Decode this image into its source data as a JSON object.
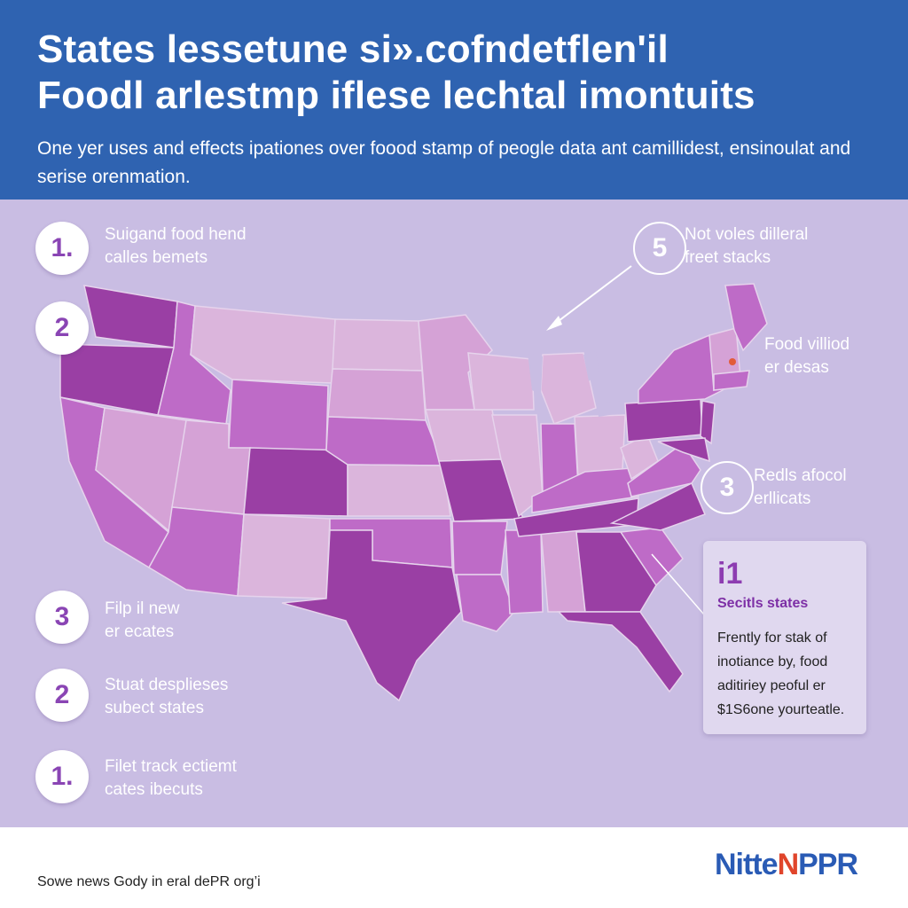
{
  "header": {
    "title_line1": "States lessetune si».cofndetflen'il",
    "title_line2": "Foodl arlestmp iflese lechtal imontuits",
    "subtitle": "One yer uses and effects ipationes over foood stamp of peogle data ant camillidest, ensinoulat and serise orenmation."
  },
  "left_items": [
    {
      "num": "1.",
      "line1": "Suigand food hend",
      "line2": "calles bemets"
    },
    {
      "num": "2",
      "line1": "",
      "line2": ""
    },
    {
      "num": "3",
      "line1": "Filp il new",
      "line2": "er ecates"
    },
    {
      "num": "2",
      "line1": "Stuat desplieses",
      "line2": "subect states"
    },
    {
      "num": "1.",
      "line1": "Filet track ectiemt",
      "line2": "cates ibecuts"
    }
  ],
  "right_items": [
    {
      "num": "5",
      "line1": "Not voles dilleral",
      "line2": "freet stacks"
    },
    {
      "num": "",
      "line1": "Food villiod",
      "line2": "er desas"
    },
    {
      "num": "3",
      "line1": "Redls afocol",
      "line2": "erllicats"
    }
  ],
  "callout": {
    "num": "i1",
    "title": "Secitls states",
    "text": "Frently for stak of inotiance by, food aditiriey peoful er $1S6one yourteatle."
  },
  "footer": {
    "source": "Sowe news Gody in eral dePR org’i",
    "logo_a": "Nitte",
    "logo_b": "N",
    "logo_c": "PPR"
  },
  "colors": {
    "header": "#2f63b1",
    "background": "#c9bde3",
    "light_state": "#dbb5dc",
    "mid_state": "#be6bc7",
    "dark_state": "#9a3fa4"
  }
}
